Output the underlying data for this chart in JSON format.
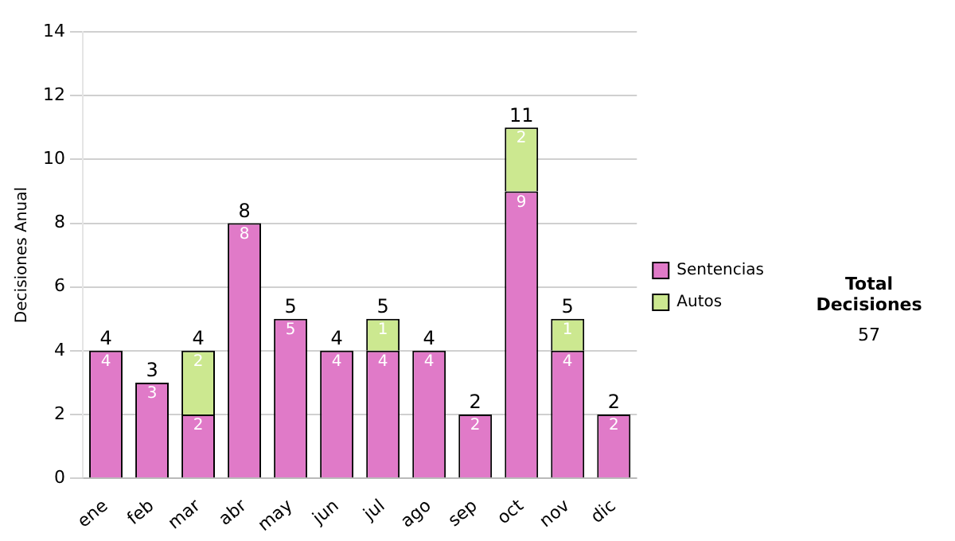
{
  "chart_data": {
    "type": "bar",
    "ylabel": "Decisiones Anual",
    "categories": [
      "ene",
      "feb",
      "mar",
      "abr",
      "may",
      "jun",
      "jul",
      "ago",
      "sep",
      "oct",
      "nov",
      "dic"
    ],
    "series": [
      {
        "name": "Sentencias",
        "color": "#e07ac8",
        "values": [
          4,
          3,
          2,
          8,
          5,
          4,
          4,
          4,
          2,
          9,
          4,
          2
        ],
        "value_labels": [
          "4",
          "3",
          "2",
          "8",
          "5",
          "4",
          "4",
          "4",
          "2",
          "9",
          "4",
          "2"
        ]
      },
      {
        "name": "Autos",
        "color": "#cce890",
        "values": [
          0,
          0,
          2,
          0,
          0,
          0,
          1,
          0,
          0,
          2,
          1,
          0
        ],
        "value_labels": [
          null,
          null,
          "2",
          null,
          null,
          null,
          "1",
          null,
          null,
          "2",
          "1",
          null
        ]
      }
    ],
    "stacked": true,
    "totals": [
      "4",
      "3",
      "4",
      "8",
      "5",
      "4",
      "5",
      "4",
      "2",
      "11",
      "5",
      "2"
    ],
    "ylim": [
      0,
      14
    ],
    "yticks": [
      0,
      2,
      4,
      6,
      8,
      10,
      12,
      14
    ],
    "grid": "y",
    "legend": "right",
    "annotations": [
      "Total Decisiones",
      "57"
    ]
  }
}
